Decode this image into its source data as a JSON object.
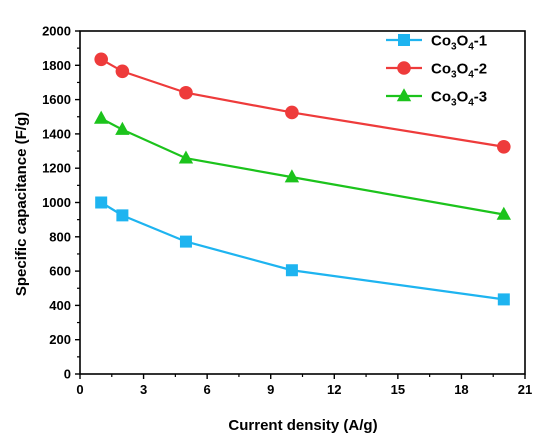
{
  "chart_data": {
    "type": "line",
    "title": "",
    "xlabel": "Current density (A/g)",
    "ylabel": "Specific capacitance (F/g)",
    "xlim": [
      0,
      21
    ],
    "ylim": [
      0,
      2000
    ],
    "xticks": [
      0,
      3,
      6,
      9,
      12,
      15,
      18,
      21
    ],
    "yticks": [
      0,
      200,
      400,
      600,
      800,
      1000,
      1200,
      1400,
      1600,
      1800,
      2000
    ],
    "grid": false,
    "legend_position": "top-right",
    "series": [
      {
        "name": "Co3O4-1",
        "color": "#1eb4f0",
        "marker": "square",
        "x": [
          1,
          2,
          5,
          10,
          20
        ],
        "y": [
          1000,
          925,
          772,
          605,
          435
        ]
      },
      {
        "name": "Co3O4-2",
        "color": "#ee3b3b",
        "marker": "circle",
        "x": [
          1,
          2,
          5,
          10,
          20
        ],
        "y": [
          1835,
          1765,
          1640,
          1525,
          1325
        ]
      },
      {
        "name": "Co3O4-3",
        "color": "#1cc31c",
        "marker": "triangle",
        "x": [
          1,
          2,
          5,
          10,
          20
        ],
        "y": [
          1490,
          1425,
          1258,
          1148,
          930
        ]
      }
    ]
  }
}
